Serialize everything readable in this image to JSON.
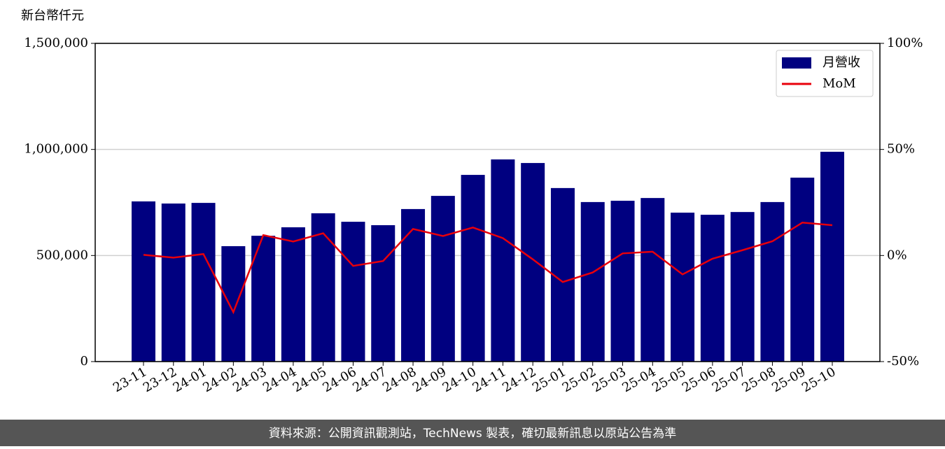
{
  "chart_data": {
    "type": "bar",
    "ylabel": "新台幣仟元",
    "categories": [
      "23-11",
      "23-12",
      "24-01",
      "24-02",
      "24-03",
      "24-04",
      "24-05",
      "24-06",
      "24-07",
      "24-08",
      "24-09",
      "24-10",
      "24-11",
      "24-12",
      "25-01",
      "25-02",
      "25-03",
      "25-04",
      "25-05",
      "25-06",
      "25-07",
      "25-08",
      "25-09",
      "25-10"
    ],
    "series": [
      {
        "name": "月營收",
        "type": "bar",
        "color": "#000080",
        "values": [
          755000,
          745000,
          748000,
          544000,
          593000,
          633000,
          699000,
          659000,
          643000,
          719000,
          781000,
          880000,
          953000,
          936000,
          818000,
          752000,
          758000,
          771000,
          702000,
          692000,
          705000,
          752000,
          867000,
          989000
        ]
      },
      {
        "name": "MoM",
        "type": "line",
        "axis": "y2",
        "color": "#e8000b",
        "values": [
          0.3,
          -1.0,
          0.7,
          -26.7,
          9.6,
          6.6,
          10.5,
          -4.9,
          -2.6,
          12.5,
          9.2,
          13.2,
          8.2,
          -1.8,
          -12.5,
          -8.0,
          1.0,
          1.8,
          -8.9,
          -1.5,
          2.5,
          6.7,
          15.5,
          14.3
        ]
      }
    ],
    "ylim": [
      0,
      1500000
    ],
    "yticks": [
      0,
      {
        "value": 500000,
        "label": "500,000"
      },
      {
        "value": 1000000,
        "label": "1,000,000"
      },
      {
        "value": 1500000,
        "label": "1,500,000"
      }
    ],
    "y2lim": [
      -50,
      100
    ],
    "y2ticks": [
      {
        "value": -50,
        "label": "-50%"
      },
      {
        "value": 0,
        "label": "0%"
      },
      {
        "value": 50,
        "label": "50%"
      },
      {
        "value": 100,
        "label": "100%"
      }
    ],
    "grid": true,
    "legend": "upper right",
    "source": "資料來源：公開資訊觀測站，TechNews 製表，確切最新訊息以原站公告為準"
  }
}
